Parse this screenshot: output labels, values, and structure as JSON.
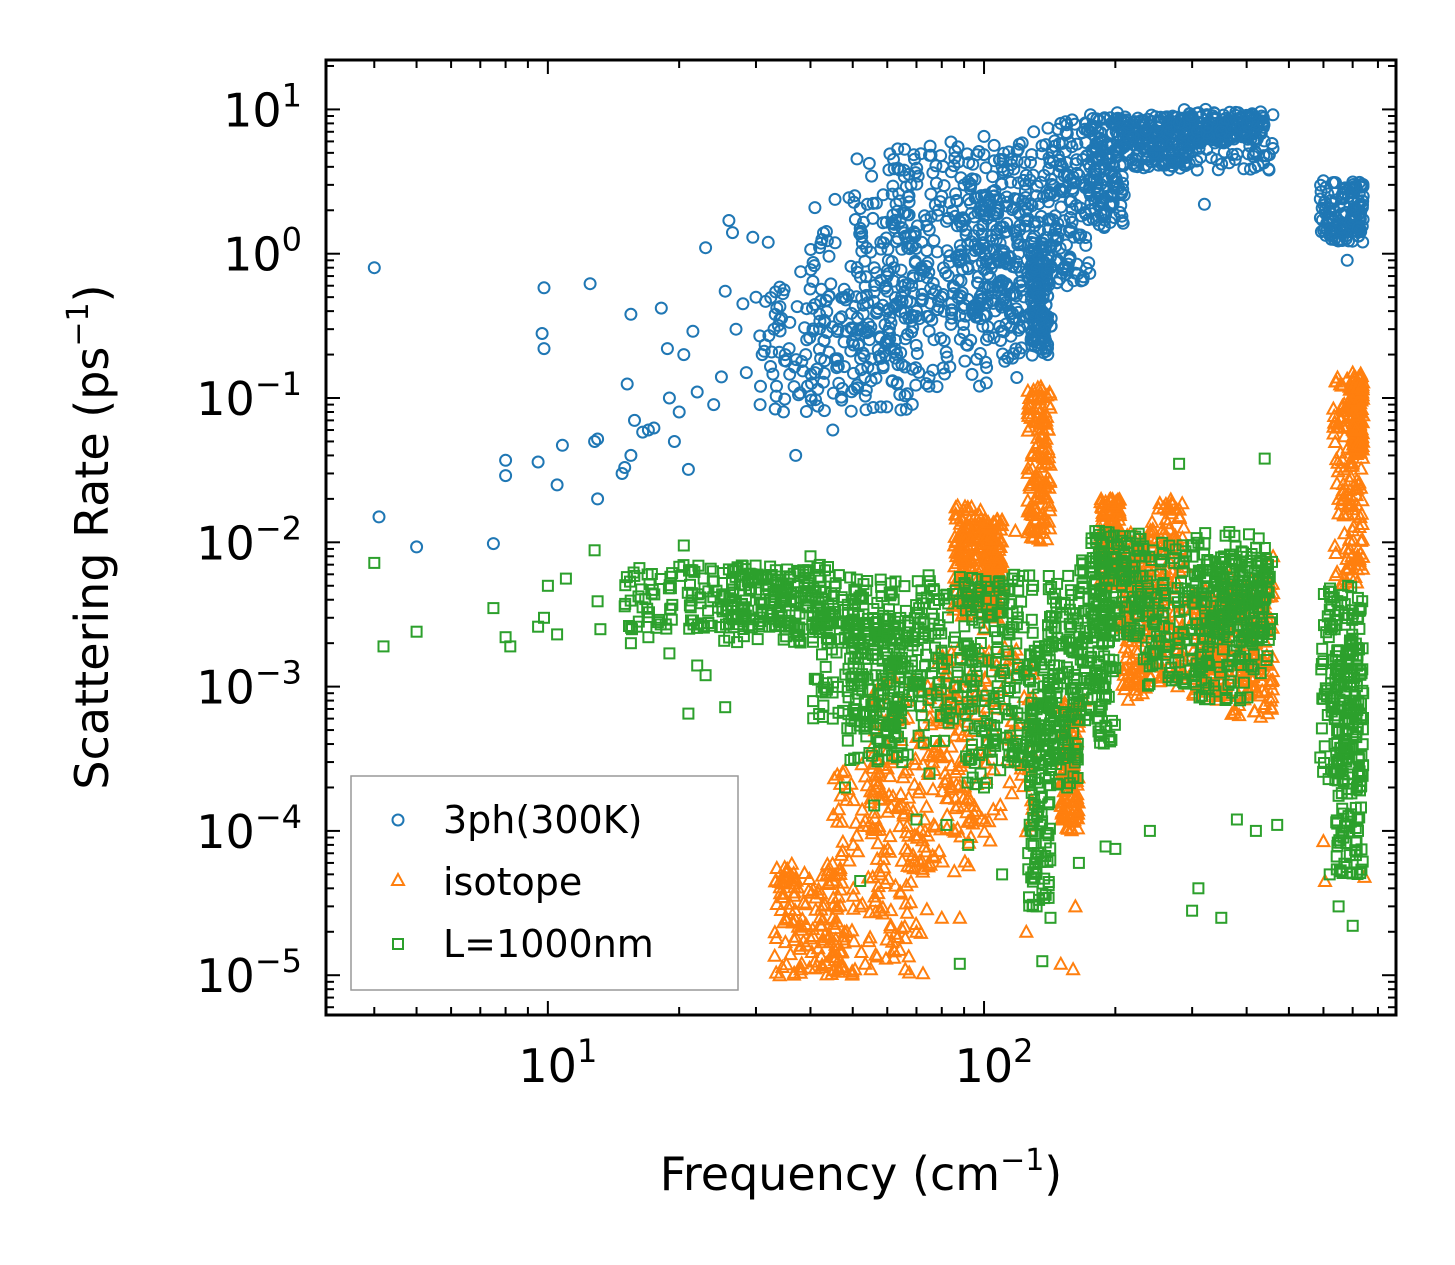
{
  "chart_data": {
    "type": "scatter",
    "title": "",
    "xlabel": "Frequency (cm",
    "xlabel_sup": "−1",
    "xlabel_end": ")",
    "ylabel": "Scattering Rate (ps",
    "ylabel_sup": "−1",
    "ylabel_end": ")",
    "xscale": "log",
    "yscale": "log",
    "xlim": [
      3.1,
      880
    ],
    "ylim": [
      5.3e-06,
      22
    ],
    "x_ticks": [
      {
        "value": 10,
        "base": "10",
        "exp": "1"
      },
      {
        "value": 100,
        "base": "10",
        "exp": "2"
      }
    ],
    "y_ticks": [
      {
        "value": 10,
        "base": "10",
        "exp": "1"
      },
      {
        "value": 1,
        "base": "10",
        "exp": "0"
      },
      {
        "value": 0.1,
        "base": "10",
        "exp": "−1"
      },
      {
        "value": 0.01,
        "base": "10",
        "exp": "−2"
      },
      {
        "value": 0.001,
        "base": "10",
        "exp": "−3"
      },
      {
        "value": 0.0001,
        "base": "10",
        "exp": "−4"
      },
      {
        "value": 1e-05,
        "base": "10",
        "exp": "−5"
      }
    ],
    "legend_position": "lower-left",
    "series": [
      {
        "name": "3ph(300K)",
        "marker": "circle",
        "color": "#1f77b4",
        "points": [
          [
            4.0,
            0.8
          ],
          [
            4.1,
            0.015
          ],
          [
            5.0,
            0.0093
          ],
          [
            7.5,
            0.0098
          ],
          [
            8.0,
            0.037
          ],
          [
            8.0,
            0.029
          ],
          [
            9.5,
            0.036
          ],
          [
            9.7,
            0.28
          ],
          [
            9.8,
            0.22
          ],
          [
            9.8,
            0.58
          ],
          [
            10.5,
            0.025
          ],
          [
            10.8,
            0.047
          ],
          [
            12.5,
            0.62
          ],
          [
            12.8,
            0.05
          ],
          [
            13.0,
            0.052
          ],
          [
            13.0,
            0.02
          ],
          [
            14.8,
            0.03
          ],
          [
            15.0,
            0.033
          ],
          [
            15.2,
            0.125
          ],
          [
            15.5,
            0.38
          ],
          [
            15.5,
            0.04
          ],
          [
            15.8,
            0.07
          ],
          [
            16.5,
            0.058
          ],
          [
            17.0,
            0.06
          ],
          [
            17.5,
            0.062
          ],
          [
            18.2,
            0.42
          ],
          [
            18.8,
            0.22
          ],
          [
            19.0,
            0.1
          ],
          [
            19.5,
            0.05
          ],
          [
            20.0,
            0.08
          ],
          [
            20.5,
            0.2
          ],
          [
            21.0,
            0.032
          ],
          [
            21.5,
            0.29
          ],
          [
            22.0,
            0.11
          ],
          [
            23.0,
            1.1
          ],
          [
            24.0,
            0.09
          ],
          [
            25.0,
            0.14
          ],
          [
            25.5,
            0.55
          ],
          [
            26.0,
            1.7
          ],
          [
            26.5,
            1.4
          ],
          [
            27.0,
            0.3
          ],
          [
            28.0,
            0.45
          ],
          [
            28.5,
            0.15
          ],
          [
            29.5,
            1.3
          ],
          [
            30.0,
            0.5
          ],
          [
            31.0,
            0.2
          ],
          [
            32.0,
            1.2
          ],
          [
            33.0,
            0.3
          ],
          [
            34.0,
            0.35
          ],
          [
            35.0,
            0.2
          ],
          [
            37.0,
            0.04
          ],
          [
            38.0,
            0.75
          ],
          [
            39.0,
            0.2
          ],
          [
            41.0,
            0.15
          ],
          [
            43.0,
            0.25
          ],
          [
            45.0,
            0.06
          ],
          [
            48.0,
            0.5
          ],
          [
            50.0,
            0.3
          ],
          [
            52.0,
            1.5
          ],
          [
            54.0,
            2.2
          ],
          [
            56.0,
            0.8
          ],
          [
            58.0,
            1.2
          ],
          [
            60.0,
            0.55
          ],
          [
            62.0,
            4.5
          ],
          [
            65.0,
            1.5
          ],
          [
            68.0,
            3.0
          ],
          [
            70.0,
            0.4
          ],
          [
            72.0,
            1.2
          ],
          [
            75.0,
            4.8
          ],
          [
            78.0,
            0.12
          ],
          [
            80.0,
            2.5
          ],
          [
            85.0,
            0.6
          ],
          [
            90.0,
            3.0
          ],
          [
            95.0,
            1.8
          ],
          [
            100.0,
            6.5
          ],
          [
            105.0,
            2.5
          ],
          [
            110.0,
            4.0
          ],
          [
            120.0,
            1.0
          ],
          [
            125.0,
            3.5
          ],
          [
            130.0,
            7.0
          ],
          [
            135.0,
            0.3
          ],
          [
            140.0,
            0.2
          ],
          [
            150.0,
            8.0
          ],
          [
            165.0,
            3.5
          ],
          [
            180.0,
            5.5
          ],
          [
            200.0,
            8.5
          ],
          [
            220.0,
            6.5
          ],
          [
            250.0,
            7.5
          ],
          [
            280.0,
            8.0
          ],
          [
            300.0,
            9.0
          ],
          [
            320.0,
            2.2
          ],
          [
            350.0,
            7.0
          ],
          [
            380.0,
            6.5
          ],
          [
            420.0,
            5.0
          ],
          [
            450.0,
            3.8
          ],
          [
            600.0,
            3.2
          ],
          [
            640.0,
            1.8
          ],
          [
            680.0,
            0.9
          ],
          [
            720.0,
            1.5
          ],
          [
            740.0,
            2.5
          ]
        ],
        "clusters": [
          [
            30,
            70,
            0.08,
            0.6
          ],
          [
            40,
            120,
            0.12,
            2.5
          ],
          [
            50,
            135,
            0.2,
            5.0
          ],
          [
            60,
            125,
            0.35,
            6.0
          ],
          [
            95,
            145,
            0.3,
            6.0
          ],
          [
            128,
            140,
            0.19,
            1.2
          ],
          [
            140,
            175,
            0.6,
            8.5
          ],
          [
            175,
            210,
            1.5,
            9.5
          ],
          [
            200,
            300,
            4.0,
            9.0
          ],
          [
            230,
            460,
            3.8,
            9.5
          ],
          [
            280,
            440,
            6.0,
            10.0
          ],
          [
            590,
            740,
            1.2,
            3.2
          ]
        ]
      },
      {
        "name": "isotope",
        "marker": "triangle",
        "color": "#ff7f0e",
        "points": [
          [
            34,
            1e-05
          ],
          [
            36,
            1.4e-05
          ],
          [
            38,
            1.1e-05
          ],
          [
            40,
            1.8e-05
          ],
          [
            45,
            2.5e-05
          ],
          [
            48,
            1.1e-05
          ],
          [
            52,
            3e-05
          ],
          [
            55,
            1.1e-05
          ],
          [
            58,
            5e-05
          ],
          [
            62,
            1.5e-05
          ],
          [
            66,
            1.1e-05
          ],
          [
            70,
            2e-05
          ],
          [
            75,
            6e-05
          ],
          [
            80,
            2.5e-05
          ],
          [
            88,
            2.5e-05
          ],
          [
            95,
            0.0012
          ],
          [
            100,
            0.0025
          ],
          [
            105,
            0.0005
          ],
          [
            118,
            0.012
          ],
          [
            125,
            2e-05
          ],
          [
            132,
            0.1
          ],
          [
            135,
            0.12
          ],
          [
            138,
            0.05
          ],
          [
            150,
            1.2e-05
          ],
          [
            160,
            1.1e-05
          ],
          [
            162,
            3e-05
          ],
          [
            170,
            0.0008
          ],
          [
            195,
            0.02
          ],
          [
            215,
            0.003
          ],
          [
            240,
            0.0012
          ],
          [
            260,
            0.006
          ],
          [
            300,
            0.004
          ],
          [
            340,
            0.0015
          ],
          [
            420,
            0.002
          ],
          [
            460,
            0.008
          ],
          [
            600,
            8.5e-05
          ],
          [
            605,
            4.5e-05
          ],
          [
            650,
            0.02
          ],
          [
            700,
            0.15
          ],
          [
            745,
            4.8e-05
          ]
        ],
        "clusters": [
          [
            33,
            48,
            1e-05,
            6e-05
          ],
          [
            45,
            75,
            1e-05,
            0.0003
          ],
          [
            55,
            95,
            5e-05,
            0.0012
          ],
          [
            75,
            130,
            8e-05,
            0.002
          ],
          [
            85,
            100,
            0.003,
            0.018
          ],
          [
            100,
            110,
            0.003,
            0.015
          ],
          [
            126,
            142,
            0.01,
            0.12
          ],
          [
            150,
            165,
            0.0001,
            0.0008
          ],
          [
            185,
            205,
            0.005,
            0.02
          ],
          [
            205,
            240,
            0.0008,
            0.012
          ],
          [
            240,
            290,
            0.001,
            0.02
          ],
          [
            300,
            360,
            0.0008,
            0.005
          ],
          [
            360,
            460,
            0.0006,
            0.006
          ],
          [
            630,
            740,
            0.005,
            0.14
          ],
          [
            700,
            740,
            0.04,
            0.15
          ]
        ]
      },
      {
        "name": "L=1000nm",
        "marker": "square",
        "color": "#2ca02c",
        "points": [
          [
            4.0,
            0.0072
          ],
          [
            4.2,
            0.0019
          ],
          [
            5.0,
            0.0024
          ],
          [
            7.5,
            0.0035
          ],
          [
            8.0,
            0.0022
          ],
          [
            8.2,
            0.0019
          ],
          [
            9.5,
            0.0026
          ],
          [
            9.8,
            0.003
          ],
          [
            10.0,
            0.005
          ],
          [
            10.5,
            0.0023
          ],
          [
            11.0,
            0.0056
          ],
          [
            12.8,
            0.0088
          ],
          [
            13.0,
            0.0039
          ],
          [
            13.2,
            0.0025
          ],
          [
            15.0,
            0.0036
          ],
          [
            15.5,
            0.002
          ],
          [
            16.0,
            0.0026
          ],
          [
            17.0,
            0.0022
          ],
          [
            18.0,
            0.0029
          ],
          [
            19.0,
            0.0017
          ],
          [
            20.5,
            0.0095
          ],
          [
            21.0,
            0.00065
          ],
          [
            22.0,
            0.0014
          ],
          [
            23.0,
            0.0012
          ],
          [
            25.5,
            0.00072
          ],
          [
            27.0,
            0.003
          ],
          [
            30.0,
            0.0045
          ],
          [
            35.0,
            0.0025
          ],
          [
            40.0,
            0.008
          ],
          [
            45.0,
            0.0006
          ],
          [
            48.0,
            0.0002
          ],
          [
            52.0,
            4.5e-05
          ],
          [
            56.0,
            0.00015
          ],
          [
            60.0,
            0.0005
          ],
          [
            65.0,
            0.0003
          ],
          [
            70.0,
            0.00012
          ],
          [
            75.0,
            0.00025
          ],
          [
            82.0,
            0.00011
          ],
          [
            88.0,
            1.2e-05
          ],
          [
            92.0,
            8e-05
          ],
          [
            100.0,
            0.0002
          ],
          [
            110.0,
            5e-05
          ],
          [
            118.0,
            0.0004
          ],
          [
            126.0,
            0.0003
          ],
          [
            132.0,
            3e-05
          ],
          [
            136.0,
            1.25e-05
          ],
          [
            142.0,
            2.5e-05
          ],
          [
            155.0,
            0.0002
          ],
          [
            165.0,
            6e-05
          ],
          [
            190.0,
            7.8e-05
          ],
          [
            200.0,
            7.5e-05
          ],
          [
            240.0,
            0.0001
          ],
          [
            280.0,
            0.035
          ],
          [
            300.0,
            2.8e-05
          ],
          [
            310.0,
            4e-05
          ],
          [
            350.0,
            2.5e-05
          ],
          [
            380.0,
            0.00012
          ],
          [
            420.0,
            0.0001
          ],
          [
            440.0,
            0.038
          ],
          [
            470.0,
            0.00011
          ],
          [
            600.0,
            0.0015
          ],
          [
            620.0,
            5e-05
          ],
          [
            650.0,
            3e-05
          ],
          [
            700.0,
            2.2e-05
          ],
          [
            720.0,
            0.0001
          ],
          [
            740.0,
            0.0009
          ]
        ],
        "clusters": [
          [
            15,
            45,
            0.0025,
            0.007
          ],
          [
            25,
            60,
            0.002,
            0.006
          ],
          [
            40,
            90,
            0.0006,
            0.005
          ],
          [
            48,
            65,
            0.0003,
            0.003
          ],
          [
            60,
            120,
            0.0003,
            0.006
          ],
          [
            90,
            130,
            0.0002,
            0.006
          ],
          [
            126,
            142,
            3e-05,
            0.002
          ],
          [
            140,
            165,
            0.0002,
            0.006
          ],
          [
            165,
            200,
            0.0004,
            0.008
          ],
          [
            175,
            230,
            0.002,
            0.012
          ],
          [
            230,
            330,
            0.001,
            0.01
          ],
          [
            300,
            450,
            0.0008,
            0.012
          ],
          [
            330,
            460,
            0.002,
            0.008
          ],
          [
            590,
            740,
            0.0002,
            0.005
          ],
          [
            640,
            740,
            5e-05,
            0.002
          ]
        ]
      }
    ]
  }
}
